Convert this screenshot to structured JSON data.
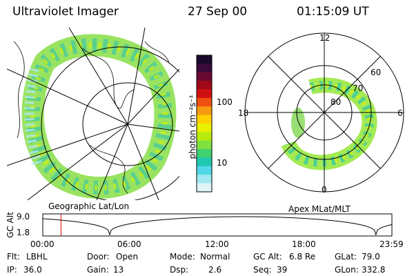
{
  "header": {
    "instrument": "Ultraviolet Imager",
    "date": "27 Sep 00",
    "time": "01:15:09 UT"
  },
  "geo_map": {
    "label": "Geographic Lat/Lon"
  },
  "colorbar": {
    "unit_label": "photon cm⁻²s⁻¹",
    "ticks": [
      "100",
      "10"
    ],
    "colors": [
      "#1a0a2a",
      "#3a0a3a",
      "#6a0a30",
      "#a00a18",
      "#d01010",
      "#f05010",
      "#f59a10",
      "#ffd000",
      "#e8f000",
      "#b8ea10",
      "#80e040",
      "#40d070",
      "#20c8b0",
      "#50d8e8",
      "#a0e8f0",
      "#e0f4f8"
    ]
  },
  "polar_plot": {
    "label": "Apex MLat/MLT",
    "mlt_labels": [
      "12",
      "18",
      "6",
      "0"
    ],
    "lat_labels": [
      "60",
      "70",
      "80"
    ]
  },
  "timeline": {
    "y_axis_label": "GC Alt",
    "y_ticks": [
      "9.0",
      "1.8"
    ],
    "x_ticks": [
      "00:00",
      "06:00",
      "12:00",
      "18:00",
      "23:59"
    ],
    "marker_time_hours": 1.2525
  },
  "info": {
    "flt_label": "Flt:",
    "flt_value": "LBHL",
    "ip_label": "IP:",
    "ip_value": "36.0",
    "door_label": "Door:",
    "door_value": "Open",
    "gain_label": "Gain:",
    "gain_value": "13",
    "mode_label": "Mode:",
    "mode_value": "Normal",
    "dsp_label": "Dsp:",
    "dsp_value": "2.6",
    "gcalt_label": "GC Alt:",
    "gcalt_value": "6.8 Re",
    "seq_label": "Seq:",
    "seq_value": "39",
    "glat_label": "GLat:",
    "glat_value": "79.0",
    "glon_label": "GLon:",
    "glon_value": "332.8"
  }
}
